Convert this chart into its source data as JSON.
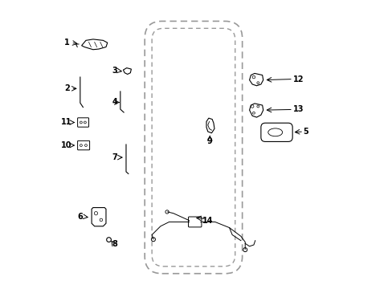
{
  "bg_color": "#ffffff",
  "line_color": "#000000",
  "dashed_color": "#aaaaaa",
  "fig_width": 4.89,
  "fig_height": 3.6
}
